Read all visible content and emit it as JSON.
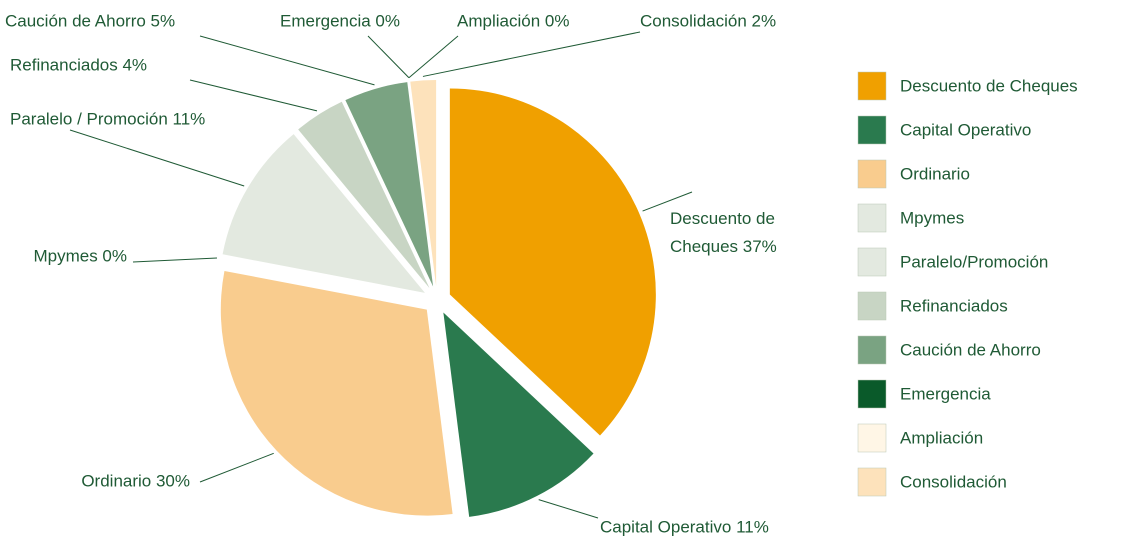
{
  "chart_data": {
    "type": "pie",
    "categories": [
      "Descuento de Cheques",
      "Capital Operativo",
      "Ordinario",
      "Mpymes",
      "Paralelo/Promoción",
      "Refinanciados",
      "Caución de Ahorro",
      "Emergencia",
      "Ampliación",
      "Consolidación"
    ],
    "values": [
      37,
      11,
      30,
      0,
      11,
      4,
      5,
      0,
      0,
      2
    ],
    "value_labels": [
      "Descuento de Cheques 37%",
      "Capital Operativo 11%",
      "Ordinario 30%",
      "Mpymes 0%",
      "Paralelo / Promoción 11%",
      "Refinanciados 4%",
      "Caución de Ahorro 5%",
      "Emergencia 0%",
      "Ampliación 0%",
      "Consolidación 2%"
    ],
    "colors": [
      "#f0a000",
      "#2a7a4e",
      "#f9cc8e",
      "#e3e9e0",
      "#e3e9e0",
      "#c8d5c4",
      "#7aa382",
      "#0a5a2a",
      "#fff6e6",
      "#fde2bb"
    ],
    "legend": "right"
  }
}
